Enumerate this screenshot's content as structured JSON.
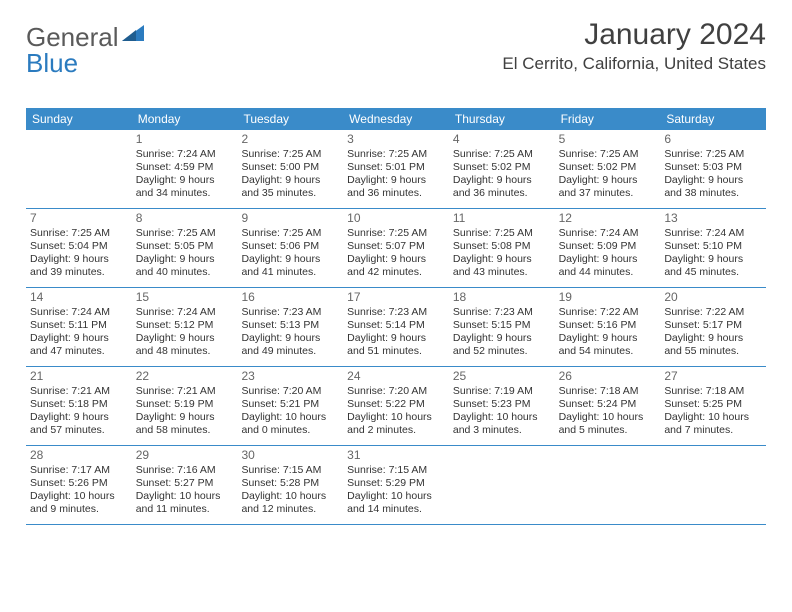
{
  "logo": {
    "text1": "General",
    "text2": "Blue"
  },
  "title": "January 2024",
  "location": "El Cerrito, California, United States",
  "weekdays": [
    "Sunday",
    "Monday",
    "Tuesday",
    "Wednesday",
    "Thursday",
    "Friday",
    "Saturday"
  ],
  "colors": {
    "header_bg": "#3a8bc9",
    "header_text": "#ffffff",
    "divider": "#3a8bc9",
    "logo_gray": "#5a5a5a",
    "logo_blue": "#2b7bbf",
    "title_color": "#404040"
  },
  "weeks": [
    [
      {
        "num": "",
        "sunrise": "",
        "sunset": "",
        "daylight": ""
      },
      {
        "num": "1",
        "sunrise": "Sunrise: 7:24 AM",
        "sunset": "Sunset: 4:59 PM",
        "daylight": "Daylight: 9 hours and 34 minutes."
      },
      {
        "num": "2",
        "sunrise": "Sunrise: 7:25 AM",
        "sunset": "Sunset: 5:00 PM",
        "daylight": "Daylight: 9 hours and 35 minutes."
      },
      {
        "num": "3",
        "sunrise": "Sunrise: 7:25 AM",
        "sunset": "Sunset: 5:01 PM",
        "daylight": "Daylight: 9 hours and 36 minutes."
      },
      {
        "num": "4",
        "sunrise": "Sunrise: 7:25 AM",
        "sunset": "Sunset: 5:02 PM",
        "daylight": "Daylight: 9 hours and 36 minutes."
      },
      {
        "num": "5",
        "sunrise": "Sunrise: 7:25 AM",
        "sunset": "Sunset: 5:02 PM",
        "daylight": "Daylight: 9 hours and 37 minutes."
      },
      {
        "num": "6",
        "sunrise": "Sunrise: 7:25 AM",
        "sunset": "Sunset: 5:03 PM",
        "daylight": "Daylight: 9 hours and 38 minutes."
      }
    ],
    [
      {
        "num": "7",
        "sunrise": "Sunrise: 7:25 AM",
        "sunset": "Sunset: 5:04 PM",
        "daylight": "Daylight: 9 hours and 39 minutes."
      },
      {
        "num": "8",
        "sunrise": "Sunrise: 7:25 AM",
        "sunset": "Sunset: 5:05 PM",
        "daylight": "Daylight: 9 hours and 40 minutes."
      },
      {
        "num": "9",
        "sunrise": "Sunrise: 7:25 AM",
        "sunset": "Sunset: 5:06 PM",
        "daylight": "Daylight: 9 hours and 41 minutes."
      },
      {
        "num": "10",
        "sunrise": "Sunrise: 7:25 AM",
        "sunset": "Sunset: 5:07 PM",
        "daylight": "Daylight: 9 hours and 42 minutes."
      },
      {
        "num": "11",
        "sunrise": "Sunrise: 7:25 AM",
        "sunset": "Sunset: 5:08 PM",
        "daylight": "Daylight: 9 hours and 43 minutes."
      },
      {
        "num": "12",
        "sunrise": "Sunrise: 7:24 AM",
        "sunset": "Sunset: 5:09 PM",
        "daylight": "Daylight: 9 hours and 44 minutes."
      },
      {
        "num": "13",
        "sunrise": "Sunrise: 7:24 AM",
        "sunset": "Sunset: 5:10 PM",
        "daylight": "Daylight: 9 hours and 45 minutes."
      }
    ],
    [
      {
        "num": "14",
        "sunrise": "Sunrise: 7:24 AM",
        "sunset": "Sunset: 5:11 PM",
        "daylight": "Daylight: 9 hours and 47 minutes."
      },
      {
        "num": "15",
        "sunrise": "Sunrise: 7:24 AM",
        "sunset": "Sunset: 5:12 PM",
        "daylight": "Daylight: 9 hours and 48 minutes."
      },
      {
        "num": "16",
        "sunrise": "Sunrise: 7:23 AM",
        "sunset": "Sunset: 5:13 PM",
        "daylight": "Daylight: 9 hours and 49 minutes."
      },
      {
        "num": "17",
        "sunrise": "Sunrise: 7:23 AM",
        "sunset": "Sunset: 5:14 PM",
        "daylight": "Daylight: 9 hours and 51 minutes."
      },
      {
        "num": "18",
        "sunrise": "Sunrise: 7:23 AM",
        "sunset": "Sunset: 5:15 PM",
        "daylight": "Daylight: 9 hours and 52 minutes."
      },
      {
        "num": "19",
        "sunrise": "Sunrise: 7:22 AM",
        "sunset": "Sunset: 5:16 PM",
        "daylight": "Daylight: 9 hours and 54 minutes."
      },
      {
        "num": "20",
        "sunrise": "Sunrise: 7:22 AM",
        "sunset": "Sunset: 5:17 PM",
        "daylight": "Daylight: 9 hours and 55 minutes."
      }
    ],
    [
      {
        "num": "21",
        "sunrise": "Sunrise: 7:21 AM",
        "sunset": "Sunset: 5:18 PM",
        "daylight": "Daylight: 9 hours and 57 minutes."
      },
      {
        "num": "22",
        "sunrise": "Sunrise: 7:21 AM",
        "sunset": "Sunset: 5:19 PM",
        "daylight": "Daylight: 9 hours and 58 minutes."
      },
      {
        "num": "23",
        "sunrise": "Sunrise: 7:20 AM",
        "sunset": "Sunset: 5:21 PM",
        "daylight": "Daylight: 10 hours and 0 minutes."
      },
      {
        "num": "24",
        "sunrise": "Sunrise: 7:20 AM",
        "sunset": "Sunset: 5:22 PM",
        "daylight": "Daylight: 10 hours and 2 minutes."
      },
      {
        "num": "25",
        "sunrise": "Sunrise: 7:19 AM",
        "sunset": "Sunset: 5:23 PM",
        "daylight": "Daylight: 10 hours and 3 minutes."
      },
      {
        "num": "26",
        "sunrise": "Sunrise: 7:18 AM",
        "sunset": "Sunset: 5:24 PM",
        "daylight": "Daylight: 10 hours and 5 minutes."
      },
      {
        "num": "27",
        "sunrise": "Sunrise: 7:18 AM",
        "sunset": "Sunset: 5:25 PM",
        "daylight": "Daylight: 10 hours and 7 minutes."
      }
    ],
    [
      {
        "num": "28",
        "sunrise": "Sunrise: 7:17 AM",
        "sunset": "Sunset: 5:26 PM",
        "daylight": "Daylight: 10 hours and 9 minutes."
      },
      {
        "num": "29",
        "sunrise": "Sunrise: 7:16 AM",
        "sunset": "Sunset: 5:27 PM",
        "daylight": "Daylight: 10 hours and 11 minutes."
      },
      {
        "num": "30",
        "sunrise": "Sunrise: 7:15 AM",
        "sunset": "Sunset: 5:28 PM",
        "daylight": "Daylight: 10 hours and 12 minutes."
      },
      {
        "num": "31",
        "sunrise": "Sunrise: 7:15 AM",
        "sunset": "Sunset: 5:29 PM",
        "daylight": "Daylight: 10 hours and 14 minutes."
      },
      {
        "num": "",
        "sunrise": "",
        "sunset": "",
        "daylight": ""
      },
      {
        "num": "",
        "sunrise": "",
        "sunset": "",
        "daylight": ""
      },
      {
        "num": "",
        "sunrise": "",
        "sunset": "",
        "daylight": ""
      }
    ]
  ]
}
